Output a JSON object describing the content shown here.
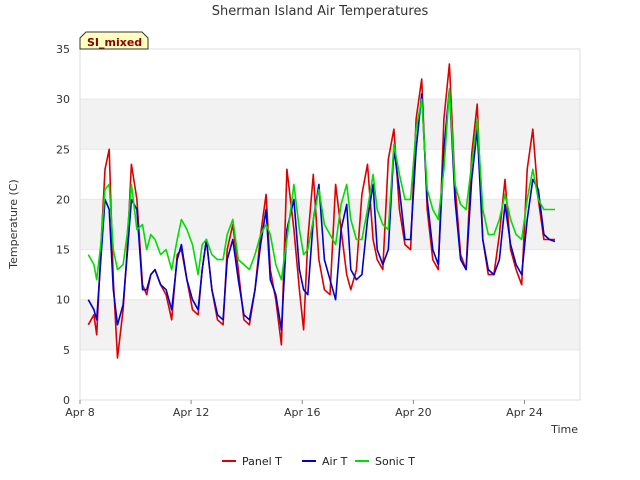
{
  "chart_data": {
    "type": "line",
    "title": "Sherman Island Air Temperatures",
    "xlabel": "Time",
    "ylabel": "Temperature (C)",
    "badge": "SI_mixed",
    "xlim": [
      0,
      18
    ],
    "ylim": [
      0,
      35
    ],
    "yticks": [
      0,
      5,
      10,
      15,
      20,
      25,
      30,
      35
    ],
    "xticks": [
      {
        "value": 0,
        "label": "Apr 8"
      },
      {
        "value": 4,
        "label": "Apr 12"
      },
      {
        "value": 8,
        "label": "Apr 16"
      },
      {
        "value": 12,
        "label": "Apr 20"
      },
      {
        "value": 16,
        "label": "Apr 24"
      }
    ],
    "grid": "horizontal bands",
    "legend_position": "bottom",
    "series": [
      {
        "name": "Panel T",
        "color": "#dd0000",
        "x": [
          0.3,
          0.5,
          0.6,
          0.75,
          0.9,
          1.05,
          1.2,
          1.35,
          1.55,
          1.7,
          1.85,
          2.05,
          2.25,
          2.4,
          2.55,
          2.7,
          2.9,
          3.1,
          3.3,
          3.5,
          3.65,
          3.85,
          4.05,
          4.25,
          4.4,
          4.55,
          4.75,
          4.95,
          5.15,
          5.3,
          5.5,
          5.7,
          5.9,
          6.1,
          6.3,
          6.5,
          6.7,
          6.85,
          7.05,
          7.25,
          7.45,
          7.7,
          7.9,
          8.05,
          8.2,
          8.4,
          8.6,
          8.8,
          9.0,
          9.2,
          9.4,
          9.6,
          9.75,
          9.95,
          10.15,
          10.35,
          10.55,
          10.7,
          10.9,
          11.1,
          11.3,
          11.5,
          11.7,
          11.9,
          12.1,
          12.3,
          12.5,
          12.7,
          12.9,
          13.1,
          13.3,
          13.5,
          13.7,
          13.9,
          14.1,
          14.3,
          14.5,
          14.7,
          14.9,
          15.1,
          15.3,
          15.5,
          15.7,
          15.9,
          16.1,
          16.3,
          16.5,
          16.7,
          16.9,
          17.1
        ],
        "y": [
          7.5,
          8.5,
          6.5,
          15.0,
          23.0,
          25.0,
          12.0,
          4.2,
          9.0,
          15.0,
          23.5,
          20.0,
          11.5,
          10.5,
          12.5,
          13.0,
          11.5,
          10.5,
          8.0,
          14.5,
          15.0,
          12.0,
          9.0,
          8.5,
          13.0,
          16.0,
          11.0,
          8.0,
          7.5,
          15.0,
          17.5,
          13.0,
          8.0,
          7.5,
          11.0,
          16.5,
          20.5,
          13.0,
          10.0,
          5.5,
          23.0,
          17.0,
          11.0,
          7.0,
          16.0,
          22.5,
          14.0,
          11.0,
          10.5,
          21.5,
          17.0,
          12.5,
          11.0,
          13.0,
          20.5,
          23.5,
          16.0,
          14.0,
          13.0,
          24.0,
          27.0,
          19.0,
          15.5,
          15.0,
          28.0,
          32.0,
          19.0,
          14.0,
          13.0,
          28.0,
          33.5,
          21.5,
          14.5,
          13.0,
          24.5,
          29.5,
          16.0,
          12.5,
          12.5,
          16.5,
          22.0,
          15.0,
          13.0,
          11.5,
          23.0,
          27.0,
          20.0,
          16.0,
          16.0,
          16.0
        ]
      },
      {
        "name": "Air T",
        "color": "#0000cc",
        "x": [
          0.3,
          0.5,
          0.6,
          0.75,
          0.9,
          1.05,
          1.2,
          1.35,
          1.55,
          1.7,
          1.85,
          2.05,
          2.25,
          2.4,
          2.55,
          2.7,
          2.9,
          3.1,
          3.3,
          3.5,
          3.65,
          3.85,
          4.05,
          4.25,
          4.4,
          4.55,
          4.75,
          4.95,
          5.15,
          5.3,
          5.5,
          5.7,
          5.9,
          6.1,
          6.3,
          6.5,
          6.7,
          6.85,
          7.05,
          7.25,
          7.45,
          7.7,
          7.9,
          8.05,
          8.2,
          8.4,
          8.6,
          8.8,
          9.0,
          9.2,
          9.4,
          9.6,
          9.75,
          9.95,
          10.15,
          10.35,
          10.55,
          10.7,
          10.9,
          11.1,
          11.3,
          11.5,
          11.7,
          11.9,
          12.1,
          12.3,
          12.5,
          12.7,
          12.9,
          13.1,
          13.3,
          13.5,
          13.7,
          13.9,
          14.1,
          14.3,
          14.5,
          14.7,
          14.9,
          15.1,
          15.3,
          15.5,
          15.7,
          15.9,
          16.1,
          16.3,
          16.5,
          16.7,
          16.9,
          17.1
        ],
        "y": [
          10.0,
          9.0,
          8.0,
          14.0,
          20.0,
          19.0,
          11.0,
          7.5,
          9.5,
          14.5,
          20.0,
          19.0,
          11.0,
          11.0,
          12.5,
          13.0,
          11.5,
          11.0,
          9.0,
          14.0,
          15.5,
          12.0,
          10.0,
          9.0,
          13.0,
          16.0,
          11.0,
          8.5,
          8.0,
          14.0,
          16.0,
          12.0,
          8.5,
          8.0,
          11.0,
          15.5,
          19.0,
          12.0,
          10.5,
          7.0,
          17.0,
          20.0,
          13.0,
          11.0,
          10.5,
          18.0,
          21.5,
          14.0,
          12.0,
          10.0,
          17.0,
          19.5,
          13.0,
          12.0,
          12.5,
          18.0,
          21.5,
          15.0,
          13.5,
          15.0,
          25.0,
          21.0,
          16.0,
          16.0,
          25.0,
          30.5,
          20.0,
          15.0,
          13.5,
          25.0,
          31.0,
          20.0,
          14.0,
          13.0,
          22.0,
          27.0,
          16.0,
          13.0,
          12.5,
          14.0,
          19.5,
          15.5,
          13.5,
          12.5,
          18.0,
          22.0,
          21.0,
          16.5,
          16.0,
          15.8
        ]
      },
      {
        "name": "Sonic T",
        "color": "#00dd00",
        "x": [
          0.3,
          0.5,
          0.6,
          0.75,
          0.9,
          1.05,
          1.2,
          1.35,
          1.55,
          1.7,
          1.85,
          2.05,
          2.25,
          2.4,
          2.55,
          2.7,
          2.9,
          3.1,
          3.3,
          3.5,
          3.65,
          3.85,
          4.05,
          4.25,
          4.4,
          4.55,
          4.75,
          4.95,
          5.15,
          5.3,
          5.5,
          5.7,
          5.9,
          6.1,
          6.3,
          6.5,
          6.7,
          6.85,
          7.05,
          7.25,
          7.45,
          7.7,
          7.9,
          8.05,
          8.2,
          8.4,
          8.6,
          8.8,
          9.0,
          9.2,
          9.4,
          9.6,
          9.75,
          9.95,
          10.15,
          10.35,
          10.55,
          10.7,
          10.9,
          11.1,
          11.3,
          11.5,
          11.7,
          11.9,
          12.1,
          12.3,
          12.5,
          12.7,
          12.9,
          13.1,
          13.3,
          13.5,
          13.7,
          13.9,
          14.1,
          14.3,
          14.5,
          14.7,
          14.9,
          15.1,
          15.3,
          15.5,
          15.7,
          15.9,
          16.1,
          16.3,
          16.5,
          16.7,
          16.9,
          17.1
        ],
        "y": [
          14.5,
          13.5,
          12.0,
          15.5,
          21.0,
          21.5,
          15.0,
          13.0,
          13.5,
          16.5,
          21.5,
          17.0,
          17.5,
          15.0,
          16.5,
          16.0,
          14.5,
          15.0,
          13.0,
          16.0,
          18.0,
          17.0,
          15.5,
          12.5,
          15.5,
          16.0,
          14.5,
          14.0,
          14.0,
          16.5,
          18.0,
          14.0,
          13.5,
          13.0,
          14.5,
          16.5,
          17.5,
          16.5,
          13.5,
          12.0,
          16.0,
          21.5,
          17.0,
          14.5,
          15.0,
          18.0,
          21.0,
          17.5,
          16.5,
          15.5,
          19.5,
          21.5,
          18.0,
          16.0,
          16.0,
          19.0,
          22.5,
          19.0,
          17.5,
          17.0,
          25.5,
          22.5,
          20.0,
          20.0,
          27.0,
          30.0,
          21.0,
          19.0,
          18.0,
          23.0,
          31.0,
          21.5,
          19.5,
          19.0,
          23.5,
          28.0,
          19.0,
          16.5,
          16.5,
          18.0,
          20.5,
          18.0,
          16.5,
          16.0,
          20.0,
          23.0,
          20.0,
          19.0,
          19.0,
          19.0
        ]
      }
    ]
  }
}
